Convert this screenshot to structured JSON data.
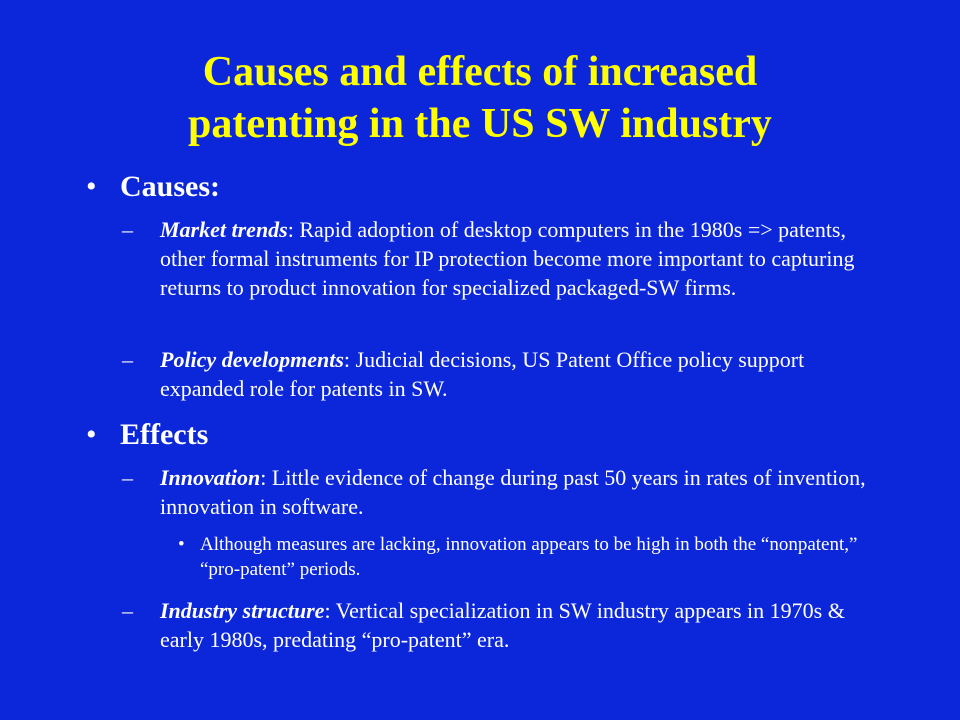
{
  "slide": {
    "title_line1": "Causes and effects of increased",
    "title_line2": "patenting in the US SW industry"
  },
  "causes": {
    "heading": "Causes:",
    "items": [
      {
        "label": "Market trends",
        "text": ":  Rapid adoption of desktop computers in the 1980s => patents, other formal instruments for IP protection become more important to capturing returns to product innovation for specialized packaged-SW firms."
      },
      {
        "label": "Policy developments",
        "text": ":  Judicial decisions, US Patent Office policy support expanded role for patents in SW."
      }
    ]
  },
  "effects": {
    "heading": "Effects",
    "items": [
      {
        "label": "Innovation",
        "text": ":  Little evidence of change during past 50 years in rates of invention, innovation in software.",
        "subitems": [
          "Although measures are lacking, innovation appears to be high in both the “nonpatent,” “pro-patent” periods."
        ]
      },
      {
        "label": "Industry structure",
        "text": ":  Vertical specialization in SW industry appears in 1970s & early 1980s, predating “pro-patent” era."
      }
    ]
  },
  "glyphs": {
    "bullet": "•",
    "dash": "–",
    "sub_bullet": "•"
  },
  "colors": {
    "background": "#0b27d9",
    "title": "#ffff00",
    "text": "#ffffff"
  }
}
